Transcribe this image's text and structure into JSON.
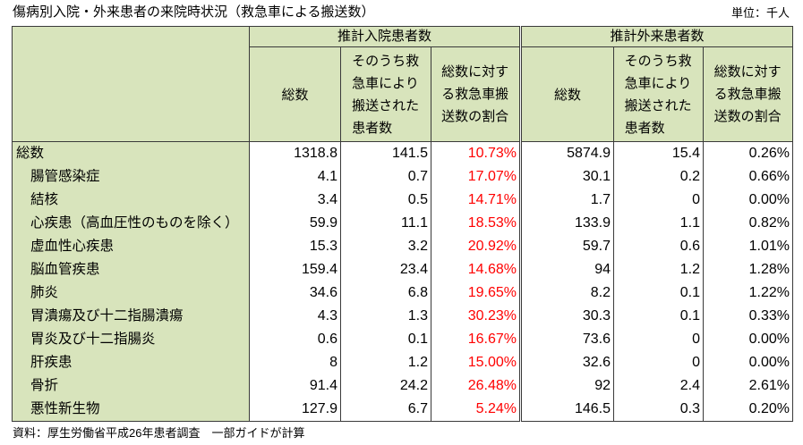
{
  "colors": {
    "header_background": "#d8e4bc",
    "label_column_background": "#d8e4bc",
    "inpatient_ratio_text": "#ff0000",
    "grid_line": "#3a3a3a"
  },
  "chart_data": {
    "type": "table",
    "title": "傷病別入院・外来患者の来院時状況（救急車による搬送数）",
    "unit_note": "単位：千人",
    "source_note": "資料：厚生労働省平成26年患者調査　一部ガイドが計算",
    "column_groups": [
      {
        "label": "推計入院患者数",
        "columns": [
          "総数",
          "そのうち救急車により搬送された患者数",
          "総数に対する救急車搬送数の割合"
        ]
      },
      {
        "label": "推計外来患者数",
        "columns": [
          "総数",
          "そのうち救急車により搬送された患者数",
          "総数に対する救急車搬送数の割合"
        ]
      }
    ],
    "total_row": {
      "label": "総数",
      "values": [
        "1318.8",
        "141.5",
        "10.73%",
        "5874.9",
        "15.4",
        "0.26%"
      ]
    },
    "rows": [
      {
        "label": "腸管感染症",
        "values": [
          "4.1",
          "0.7",
          "17.07%",
          "30.1",
          "0.2",
          "0.66%"
        ]
      },
      {
        "label": "結核",
        "values": [
          "3.4",
          "0.5",
          "14.71%",
          "1.7",
          "0",
          "0.00%"
        ]
      },
      {
        "label": "心疾患（高血圧性のものを除く）",
        "values": [
          "59.9",
          "11.1",
          "18.53%",
          "133.9",
          "1.1",
          "0.82%"
        ]
      },
      {
        "label": "虚血性心疾患",
        "values": [
          "15.3",
          "3.2",
          "20.92%",
          "59.7",
          "0.6",
          "1.01%"
        ]
      },
      {
        "label": "脳血管疾患",
        "values": [
          "159.4",
          "23.4",
          "14.68%",
          "94",
          "1.2",
          "1.28%"
        ]
      },
      {
        "label": "肺炎",
        "values": [
          "34.6",
          "6.8",
          "19.65%",
          "8.2",
          "0.1",
          "1.22%"
        ]
      },
      {
        "label": "胃潰瘍及び十二指腸潰瘍",
        "values": [
          "4.3",
          "1.3",
          "30.23%",
          "30.3",
          "0.1",
          "0.33%"
        ]
      },
      {
        "label": "胃炎及び十二指腸炎",
        "values": [
          "0.6",
          "0.1",
          "16.67%",
          "73.6",
          "0",
          "0.00%"
        ]
      },
      {
        "label": "肝疾患",
        "values": [
          "8",
          "1.2",
          "15.00%",
          "32.6",
          "0",
          "0.00%"
        ]
      },
      {
        "label": "骨折",
        "values": [
          "91.4",
          "24.2",
          "26.48%",
          "92",
          "2.4",
          "2.61%"
        ]
      },
      {
        "label": "悪性新生物",
        "values": [
          "127.9",
          "6.7",
          "5.24%",
          "146.5",
          "0.3",
          "0.20%"
        ]
      }
    ]
  }
}
